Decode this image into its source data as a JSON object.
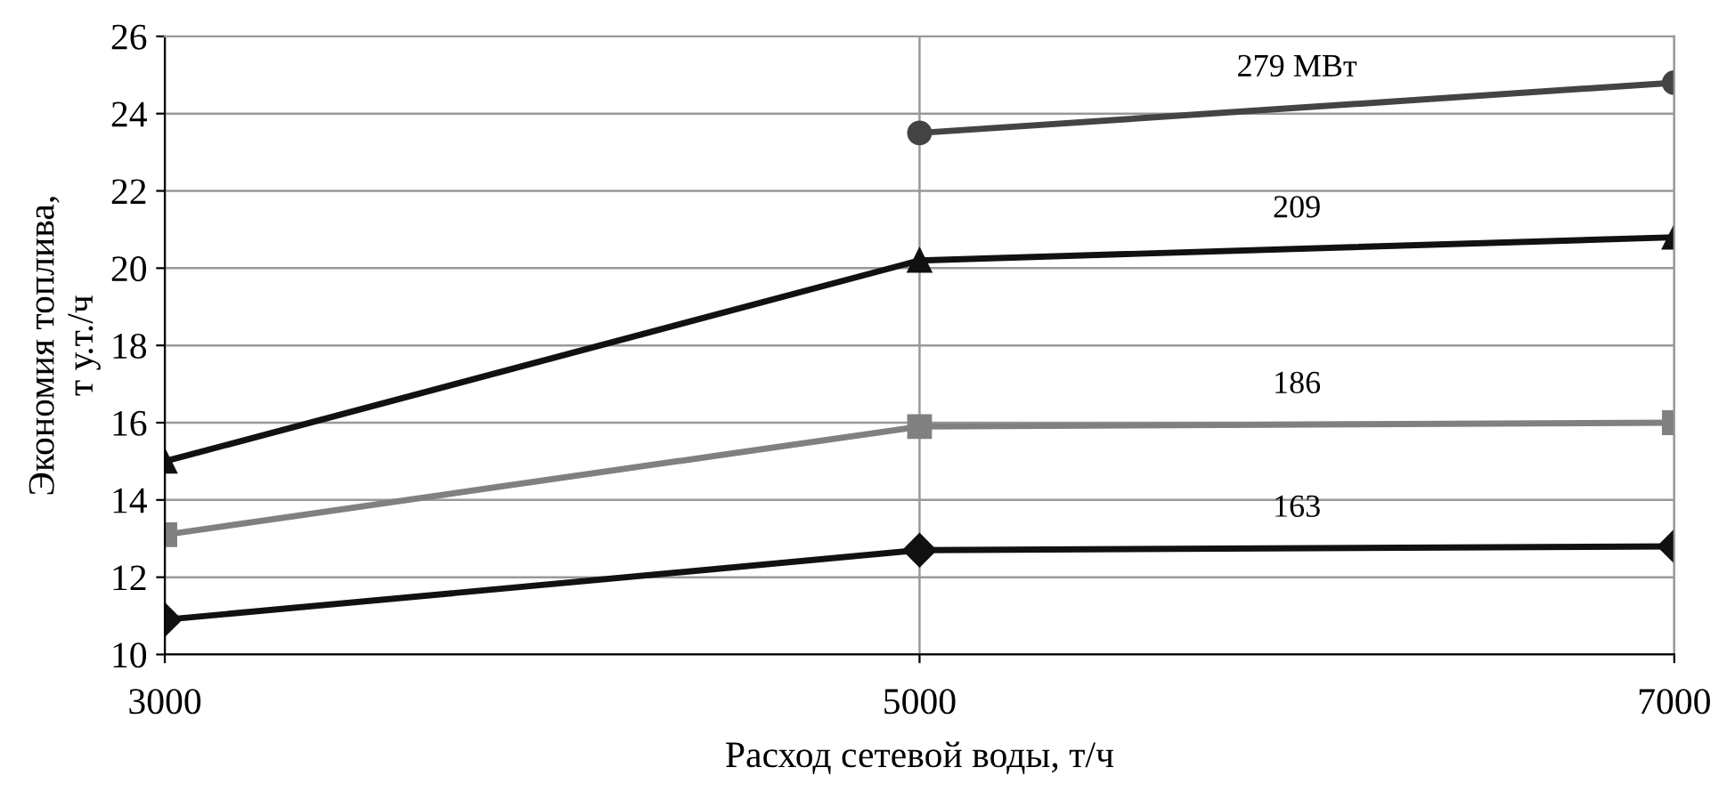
{
  "chart_data": {
    "type": "line",
    "xlabel": "Расход сетевой воды, т/ч",
    "ylabel": "Экономия топлива,\nт у.т./ч",
    "xlim": [
      3000,
      7000
    ],
    "xticks": [
      3000,
      5000,
      7000
    ],
    "ylim": [
      10,
      26
    ],
    "yticks": [
      10,
      12,
      14,
      16,
      18,
      20,
      22,
      24,
      26
    ],
    "grid": true,
    "legend": false,
    "line_style": "solid",
    "series": [
      {
        "name": "279 МВт",
        "color": "#444444",
        "marker": "circle",
        "x": [
          5000,
          7000
        ],
        "values": [
          23.5,
          24.8
        ]
      },
      {
        "name": "209",
        "color": "#111111",
        "marker": "triangle",
        "x": [
          3000,
          5000,
          7000
        ],
        "values": [
          15.0,
          20.2,
          20.8
        ]
      },
      {
        "name": "186",
        "color": "#808080",
        "marker": "square",
        "x": [
          3000,
          5000,
          7000
        ],
        "values": [
          13.1,
          15.9,
          16.0
        ]
      },
      {
        "name": "163",
        "color": "#111111",
        "marker": "diamond",
        "x": [
          3000,
          5000,
          7000
        ],
        "values": [
          10.9,
          12.7,
          12.8
        ]
      }
    ]
  }
}
